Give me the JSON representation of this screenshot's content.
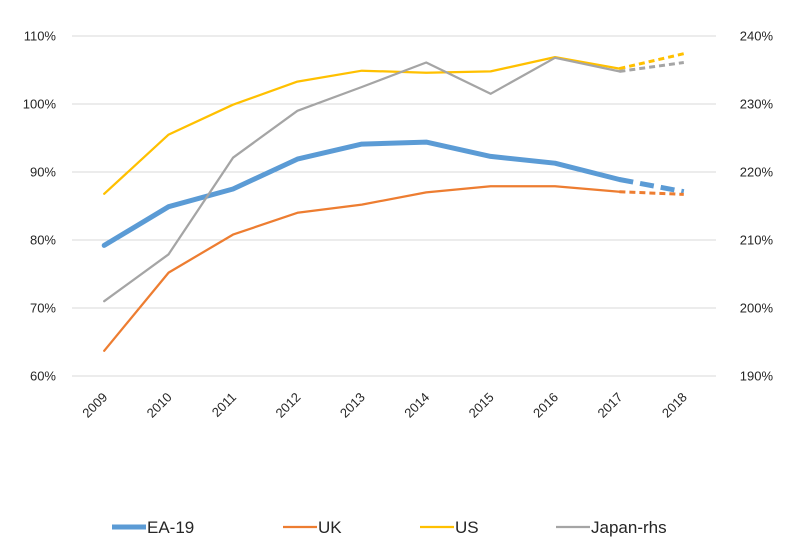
{
  "chart_data": {
    "type": "line",
    "title": "",
    "categories": [
      "2009",
      "2010",
      "2011",
      "2012",
      "2013",
      "2014",
      "2015",
      "2016",
      "2017",
      "2018"
    ],
    "y_left": {
      "ylim": [
        60,
        110
      ],
      "ticks": [
        "60%",
        "70%",
        "80%",
        "90%",
        "100%",
        "110%"
      ],
      "tick_values": [
        60,
        70,
        80,
        90,
        100,
        110
      ]
    },
    "y_right": {
      "ylim": [
        190,
        240
      ],
      "ticks": [
        "190%",
        "200%",
        "210%",
        "220%",
        "230%",
        "240%"
      ],
      "tick_values": [
        190,
        200,
        210,
        220,
        230,
        240
      ]
    },
    "grid": true,
    "legend_position": "bottom",
    "projection_from": "2017",
    "series": [
      {
        "name": "EA-19",
        "axis": "left",
        "color": "#5B9BD5",
        "style": "thick",
        "values": [
          79.2,
          84.9,
          87.5,
          91.9,
          94.1,
          94.4,
          92.3,
          91.3,
          88.9,
          87.1
        ]
      },
      {
        "name": "UK",
        "axis": "left",
        "color": "#ED7D31",
        "style": "normal",
        "values": [
          63.7,
          75.2,
          80.8,
          84.0,
          85.2,
          87.0,
          87.9,
          87.9,
          87.1,
          86.7
        ]
      },
      {
        "name": "US",
        "axis": "left",
        "color": "#FFC000",
        "style": "normal",
        "values": [
          86.8,
          95.5,
          99.9,
          103.3,
          104.9,
          104.6,
          104.8,
          106.9,
          105.2,
          107.4
        ]
      },
      {
        "name": "Japan-rhs",
        "axis": "right",
        "color": "#A5A5A5",
        "style": "normal",
        "values": [
          201.0,
          207.9,
          222.1,
          229.0,
          232.5,
          236.1,
          231.5,
          236.8,
          234.8,
          236.1
        ]
      }
    ]
  }
}
